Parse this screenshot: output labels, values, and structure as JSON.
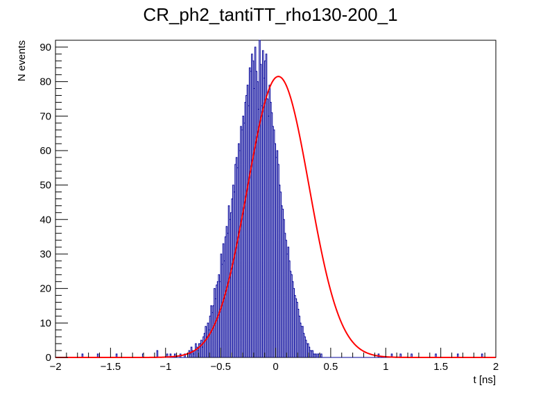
{
  "chart_data": {
    "type": "histogram",
    "title": "CR_ph2_tantiTT_rho130-200_1",
    "xlabel": "t [ns]",
    "ylabel": "N events",
    "xlim": [
      -2,
      2
    ],
    "ylim": [
      0,
      92
    ],
    "x_ticks": [
      -2,
      -1.5,
      -1,
      -0.5,
      0,
      0.5,
      1,
      1.5,
      2
    ],
    "x_tick_labels": [
      "−2",
      "−1.5",
      "−1",
      "−0.5",
      "0",
      "0.5",
      "1",
      "1.5",
      "2"
    ],
    "y_ticks": [
      0,
      10,
      20,
      30,
      40,
      50,
      60,
      70,
      80,
      90
    ],
    "y_tick_labels": [
      "0",
      "10",
      "20",
      "30",
      "40",
      "50",
      "60",
      "70",
      "80",
      "90"
    ],
    "bin_width": 0.01,
    "bin_lo": -0.87,
    "bin_counts": [
      1,
      0,
      0,
      0,
      1,
      0,
      0,
      1,
      2,
      1,
      3,
      2,
      1,
      2,
      4,
      3,
      2,
      4,
      4,
      5,
      3,
      6,
      7,
      9,
      6,
      10,
      8,
      12,
      15,
      13,
      15,
      20,
      17,
      21,
      22,
      24,
      22,
      30,
      27,
      33,
      28,
      35,
      38,
      36,
      44,
      40,
      42,
      46,
      50,
      48,
      56,
      58,
      55,
      62,
      60,
      67,
      66,
      70,
      68,
      74,
      76,
      79,
      73,
      84,
      83,
      88,
      86,
      78,
      90,
      83,
      80,
      72,
      92,
      85,
      73,
      89,
      81,
      86,
      88,
      75,
      70,
      79,
      74,
      71,
      67,
      66,
      62,
      58,
      60,
      56,
      50,
      48,
      44,
      43,
      40,
      36,
      34,
      30,
      32,
      28,
      25,
      24,
      22,
      20,
      18,
      17,
      16,
      14,
      12,
      10,
      9,
      9,
      7,
      6,
      5,
      4,
      4,
      3,
      2,
      2,
      2,
      1,
      1,
      1,
      0,
      1,
      1,
      0,
      1
    ],
    "sparse_bins": [
      {
        "x": -1.76,
        "count": 1
      },
      {
        "x": -1.62,
        "count": 1
      },
      {
        "x": -1.45,
        "count": 1
      },
      {
        "x": -1.21,
        "count": 1
      },
      {
        "x": -1.08,
        "count": 2
      },
      {
        "x": -0.99,
        "count": 1
      },
      {
        "x": -0.96,
        "count": 1
      },
      {
        "x": -0.92,
        "count": 1
      },
      {
        "x": 0.93,
        "count": 1
      },
      {
        "x": 1.05,
        "count": 1
      },
      {
        "x": 1.13,
        "count": 1
      },
      {
        "x": 1.23,
        "count": 1
      },
      {
        "x": 1.45,
        "count": 1
      },
      {
        "x": 1.65,
        "count": 1
      },
      {
        "x": 1.87,
        "count": 1
      }
    ],
    "fit": {
      "type": "gaussian",
      "amplitude": 81.5,
      "mean": 0.025,
      "sigma": 0.28,
      "color": "#ff0000"
    },
    "histogram_color": "#000099",
    "grid": false,
    "legend": "none"
  }
}
